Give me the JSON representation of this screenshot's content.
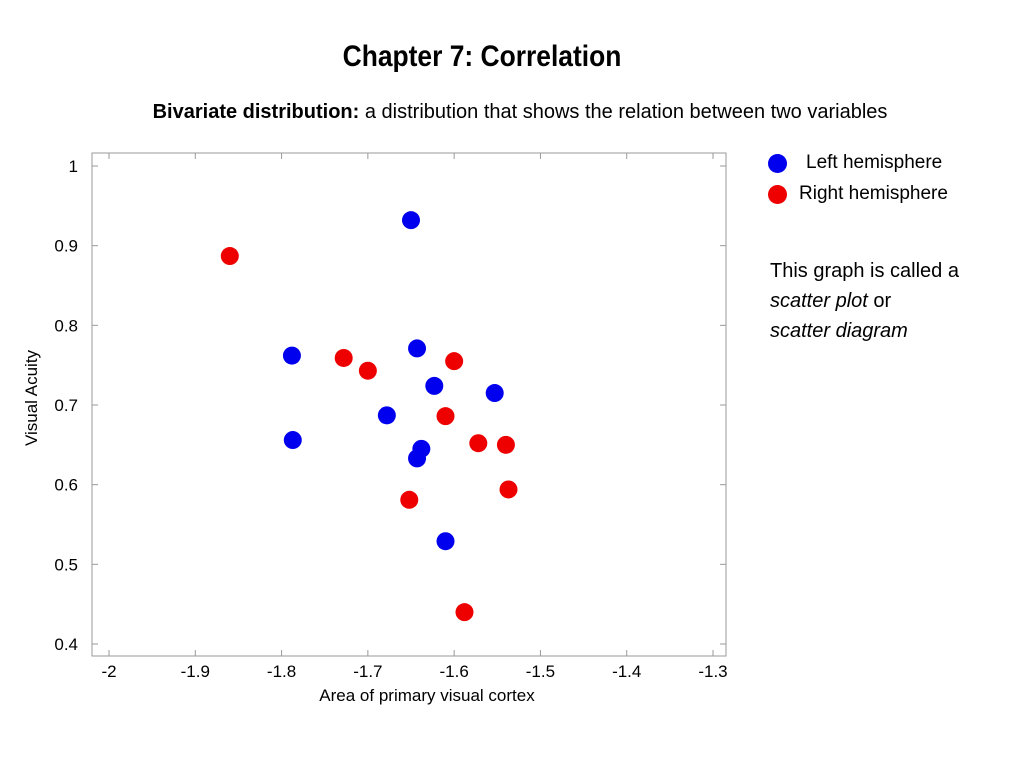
{
  "slide": {
    "title": "Chapter 7: Correlation",
    "subtitle_bold": "Bivariate distribution:",
    "subtitle_rest": " a distribution that shows the relation between two variables"
  },
  "legend": {
    "items": [
      {
        "label": "Left hemisphere",
        "color": "#0000ee"
      },
      {
        "label": "Right hemisphere",
        "color": "#ee0000"
      }
    ]
  },
  "note": {
    "line1": "This graph is called a",
    "line2_italic": "scatter plot",
    "line2_rest": " or",
    "line3_italic": "scatter diagram"
  },
  "chart_data": {
    "type": "scatter",
    "title": "",
    "xlabel": "Area of primary visual cortex",
    "ylabel": "Visual Acuity",
    "xlim": [
      -2,
      -1.3
    ],
    "ylim": [
      0.4,
      1.0
    ],
    "xticks": [
      "-2",
      "-1.9",
      "-1.8",
      "-1.7",
      "-1.6",
      "-1.5",
      "-1.4",
      "-1.3"
    ],
    "yticks": [
      "0.4",
      "0.5",
      "0.6",
      "0.7",
      "0.8",
      "0.9",
      "1"
    ],
    "grid": false,
    "legend_position": "right, outside plot",
    "series": [
      {
        "name": "Left hemisphere",
        "color": "#0000ee",
        "points": [
          [
            -1.65,
            0.932
          ],
          [
            -1.788,
            0.762
          ],
          [
            -1.643,
            0.771
          ],
          [
            -1.623,
            0.724
          ],
          [
            -1.553,
            0.715
          ],
          [
            -1.678,
            0.687
          ],
          [
            -1.787,
            0.656
          ],
          [
            -1.638,
            0.645
          ],
          [
            -1.643,
            0.633
          ],
          [
            -1.61,
            0.529
          ]
        ]
      },
      {
        "name": "Right hemisphere",
        "color": "#ee0000",
        "points": [
          [
            -1.86,
            0.887
          ],
          [
            -1.728,
            0.759
          ],
          [
            -1.7,
            0.743
          ],
          [
            -1.6,
            0.755
          ],
          [
            -1.61,
            0.686
          ],
          [
            -1.572,
            0.652
          ],
          [
            -1.54,
            0.65
          ],
          [
            -1.537,
            0.594
          ],
          [
            -1.652,
            0.581
          ],
          [
            -1.588,
            0.44
          ]
        ]
      }
    ]
  }
}
